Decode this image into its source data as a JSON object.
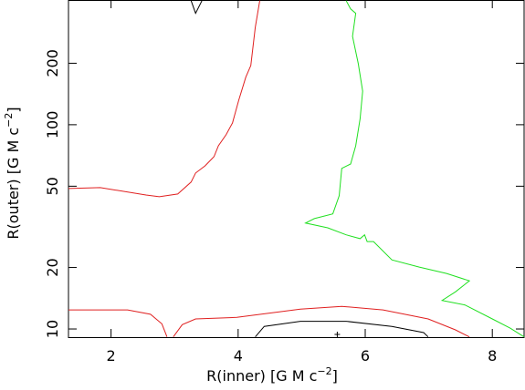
{
  "chart_data": {
    "type": "contour",
    "xlabel": [
      "R(inner) [G M c",
      "−2",
      "]"
    ],
    "ylabel": [
      "R(outer) [G M c",
      "−2",
      "]"
    ],
    "xlim": [
      1.33,
      8.5
    ],
    "ylim": [
      9.12,
      408
    ],
    "ylog": true,
    "xticks": [
      2,
      4,
      6,
      8
    ],
    "yticks": [
      10,
      20,
      50,
      100,
      200
    ],
    "series": [
      {
        "color": "#e02020",
        "x": [
          1.33,
          1.83,
          2.55,
          2.76,
          3.05,
          3.26,
          3.33,
          3.48,
          3.62,
          3.69,
          3.81,
          3.91,
          4.01,
          4.12,
          4.2,
          4.27,
          4.34,
          null,
          1.33,
          2.26,
          2.62,
          2.8,
          2.88,
          null,
          2.98,
          3.12,
          3.33,
          3.98,
          4.98,
          5.63,
          6.28,
          6.99,
          7.42,
          7.64
        ],
        "y": [
          48.7,
          49.2,
          45.3,
          44.4,
          45.8,
          52.4,
          58.0,
          62.9,
          69.8,
          78.9,
          89.3,
          102,
          132,
          171,
          195,
          300,
          405,
          null,
          12.4,
          12.4,
          11.8,
          10.6,
          9.15,
          null,
          9.15,
          10.5,
          11.2,
          11.4,
          12.5,
          12.9,
          12.4,
          11.2,
          9.9,
          9.15
        ]
      },
      {
        "color": "#20e020",
        "x": [
          5.7,
          5.77,
          5.85,
          5.8,
          5.89,
          5.96,
          5.92,
          5.85,
          5.77,
          5.63,
          5.59,
          5.49,
          5.2,
          5.06,
          5.41,
          5.7,
          5.92,
          5.99,
          6.03,
          6.13,
          6.42,
          6.85,
          7.28,
          7.64,
          7.42,
          7.21,
          7.57,
          8.0,
          8.28,
          8.5
        ],
        "y": [
          405,
          369,
          351,
          271,
          199,
          146,
          107,
          78.9,
          64.2,
          61.1,
          44.9,
          36.6,
          34.7,
          33.0,
          31.3,
          28.9,
          27.7,
          28.9,
          26.8,
          26.8,
          21.8,
          20.1,
          18.7,
          17.2,
          15.2,
          13.8,
          13.1,
          11.2,
          10.1,
          9.15
        ]
      },
      {
        "color": "#000000",
        "x": [
          4.27,
          4.41,
          4.98,
          5.7,
          6.42,
          6.92,
          6.99,
          null,
          3.26,
          3.33,
          3.43
        ],
        "y": [
          9.15,
          10.3,
          10.9,
          10.9,
          10.3,
          9.6,
          9.15,
          null,
          405,
          351,
          405
        ]
      }
    ],
    "best_fit": {
      "x": 5.56,
      "y": 9.4
    }
  }
}
